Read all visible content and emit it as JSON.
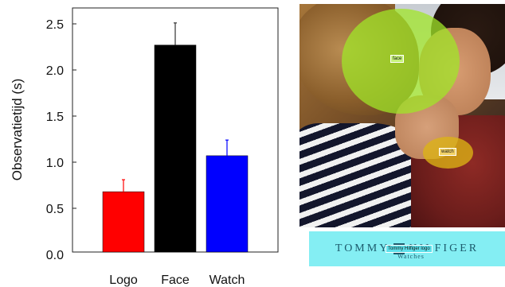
{
  "chart_data": {
    "type": "bar",
    "categories": [
      "Logo",
      "Face",
      "Watch"
    ],
    "values": [
      0.68,
      2.27,
      1.07
    ],
    "errors": [
      0.13,
      0.24,
      0.17
    ],
    "colors": [
      "#ff0000",
      "#000000",
      "#0000ff"
    ],
    "ylabel": "Observatietijd (s)",
    "ylim": [
      0,
      2.6
    ],
    "yticks": [
      "0.0",
      "0.5",
      "1.0",
      "1.5",
      "2.0",
      "2.5"
    ],
    "ytick_values": [
      0,
      0.5,
      1.0,
      1.5,
      2.0,
      2.5
    ],
    "grid": false,
    "error_bars": "upper"
  },
  "photo": {
    "aoi_labels": {
      "face": "face",
      "watch": "watch",
      "logo": "Tommy Hilfiger logo"
    },
    "aoi_colors": {
      "face": "#a0e628",
      "watch": "#dcb414",
      "logo": "#84eef3"
    },
    "logo": {
      "left_word": "TOMMY",
      "right_word": "HILFIGER",
      "sub": "Watches"
    }
  }
}
